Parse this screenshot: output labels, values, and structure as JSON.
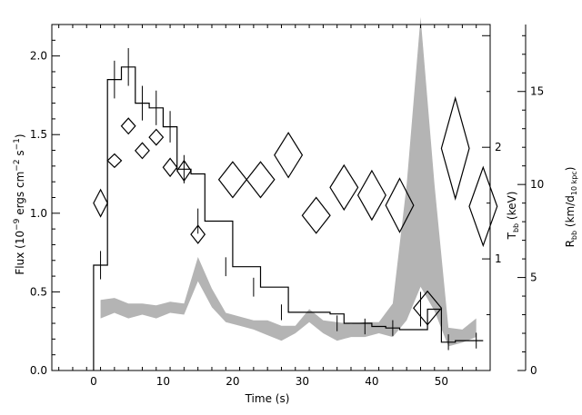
{
  "chart_data": {
    "type": "line",
    "xlabel": "Time (s)",
    "ylabel_left": "Flux (10",
    "ylabel_left_exp1": "−9",
    "ylabel_left_mid": " ergs cm",
    "ylabel_left_exp2": "−2",
    "ylabel_left_mid2": " s",
    "ylabel_left_exp3": "−1",
    "ylabel_left_end": ")",
    "ylabel_t_main": "T",
    "ylabel_t_sub": "bb",
    "ylabel_t_end": " (keV)",
    "ylabel_r_main": "R",
    "ylabel_r_sub": "bb",
    "ylabel_r_mid": " (km/d",
    "ylabel_r_sub2": "10 kpc",
    "ylabel_r_end": ")",
    "xlim": [
      -6,
      57
    ],
    "ylim_left": [
      0,
      2.2
    ],
    "ylim_T": [
      0,
      3.1
    ],
    "ylim_R": [
      0,
      18.6
    ],
    "x_ticks": [
      0,
      10,
      20,
      30,
      40,
      50
    ],
    "y_left_ticks": [
      0.0,
      0.5,
      1.0,
      1.5,
      2.0
    ],
    "y_left_tick_labels": [
      "0.0",
      "0.5",
      "1.0",
      "1.5",
      "2.0"
    ],
    "T_ticks": [
      1,
      2
    ],
    "T_tick_labels": [
      "1",
      "2"
    ],
    "R_ticks": [
      0,
      5,
      10,
      15
    ],
    "R_tick_labels": [
      "0",
      "5",
      "10",
      "15"
    ],
    "flux_histogram": {
      "edges": [
        0,
        2,
        4,
        6,
        8,
        10,
        12,
        14,
        16,
        18,
        20,
        22,
        24,
        26,
        28,
        30,
        32,
        34,
        36,
        38,
        40,
        42,
        44,
        46,
        48,
        50,
        52,
        54,
        56
      ],
      "values": [
        0.67,
        1.85,
        1.93,
        1.7,
        1.67,
        1.55,
        1.28,
        1.25,
        0.95,
        0.95,
        0.66,
        0.66,
        0.53,
        0.53,
        0.37,
        0.37,
        0.37,
        0.36,
        0.3,
        0.3,
        0.28,
        0.27,
        0.26,
        0.26,
        0.39,
        0.18,
        0.19,
        0.19
      ],
      "error_bars": [
        {
          "x": 1,
          "y": 0.67,
          "err": 0.09
        },
        {
          "x": 3,
          "y": 1.85,
          "err": 0.12
        },
        {
          "x": 5,
          "y": 1.93,
          "err": 0.12
        },
        {
          "x": 7,
          "y": 1.7,
          "err": 0.11
        },
        {
          "x": 9,
          "y": 1.67,
          "err": 0.11
        },
        {
          "x": 11,
          "y": 1.55,
          "err": 0.1
        },
        {
          "x": 13,
          "y": 1.28,
          "err": 0.09
        },
        {
          "x": 15,
          "y": 0.95,
          "err": 0.08
        },
        {
          "x": 19,
          "y": 0.66,
          "err": 0.06
        },
        {
          "x": 23,
          "y": 0.53,
          "err": 0.06
        },
        {
          "x": 27,
          "y": 0.37,
          "err": 0.05
        },
        {
          "x": 35,
          "y": 0.3,
          "err": 0.05
        },
        {
          "x": 39,
          "y": 0.28,
          "err": 0.05
        },
        {
          "x": 43,
          "y": 0.27,
          "err": 0.05
        },
        {
          "x": 47,
          "y": 0.39,
          "err": 0.11
        },
        {
          "x": 51,
          "y": 0.18,
          "err": 0.05
        },
        {
          "x": 55,
          "y": 0.19,
          "err": 0.05
        }
      ]
    },
    "temperature_diamonds": [
      {
        "x": 1,
        "dx": 1,
        "y": 1.5,
        "dy": 0.12
      },
      {
        "x": 3,
        "dx": 1,
        "y": 1.88,
        "dy": 0.06
      },
      {
        "x": 5,
        "dx": 1,
        "y": 2.19,
        "dy": 0.07
      },
      {
        "x": 7,
        "dx": 1,
        "y": 1.97,
        "dy": 0.07
      },
      {
        "x": 9,
        "dx": 1,
        "y": 2.09,
        "dy": 0.07
      },
      {
        "x": 11,
        "dx": 1,
        "y": 1.82,
        "dy": 0.08
      },
      {
        "x": 13,
        "dx": 1,
        "y": 1.79,
        "dy": 0.09
      },
      {
        "x": 15,
        "dx": 1,
        "y": 1.22,
        "dy": 0.08
      },
      {
        "x": 20,
        "dx": 2,
        "y": 1.71,
        "dy": 0.16
      },
      {
        "x": 24,
        "dx": 2,
        "y": 1.71,
        "dy": 0.16
      },
      {
        "x": 28,
        "dx": 2,
        "y": 1.93,
        "dy": 0.2
      },
      {
        "x": 32,
        "dx": 2,
        "y": 1.39,
        "dy": 0.16
      },
      {
        "x": 36,
        "dx": 2,
        "y": 1.64,
        "dy": 0.2
      },
      {
        "x": 40,
        "dx": 2,
        "y": 1.57,
        "dy": 0.22
      },
      {
        "x": 44,
        "dx": 2,
        "y": 1.48,
        "dy": 0.24
      },
      {
        "x": 48,
        "dx": 2,
        "y": 0.56,
        "dy": 0.15
      },
      {
        "x": 52,
        "dx": 2,
        "y": 1.99,
        "dy": 0.45
      },
      {
        "x": 56,
        "dx": 2,
        "y": 1.47,
        "dy": 0.35
      }
    ],
    "radius_band": {
      "x": [
        1,
        3,
        5,
        7,
        9,
        11,
        13,
        15,
        17,
        19,
        21,
        23,
        25,
        27,
        29,
        31,
        33,
        35,
        37,
        39,
        41,
        43,
        45,
        47,
        49,
        51,
        53,
        55
      ],
      "low": [
        2.8,
        3.1,
        2.8,
        3.0,
        2.8,
        3.1,
        3.0,
        4.8,
        3.4,
        2.6,
        2.4,
        2.2,
        1.9,
        1.6,
        2.0,
        2.6,
        2.0,
        1.6,
        1.8,
        1.8,
        2.0,
        1.8,
        2.7,
        4.5,
        3.2,
        1.3,
        1.5,
        1.8
      ],
      "high": [
        3.8,
        3.9,
        3.6,
        3.6,
        3.5,
        3.7,
        3.6,
        6.1,
        4.4,
        3.1,
        2.9,
        2.7,
        2.7,
        2.4,
        2.4,
        3.3,
        2.7,
        2.6,
        2.5,
        2.6,
        2.6,
        3.6,
        10.0,
        19.0,
        10.0,
        2.3,
        2.2,
        2.8
      ]
    }
  }
}
